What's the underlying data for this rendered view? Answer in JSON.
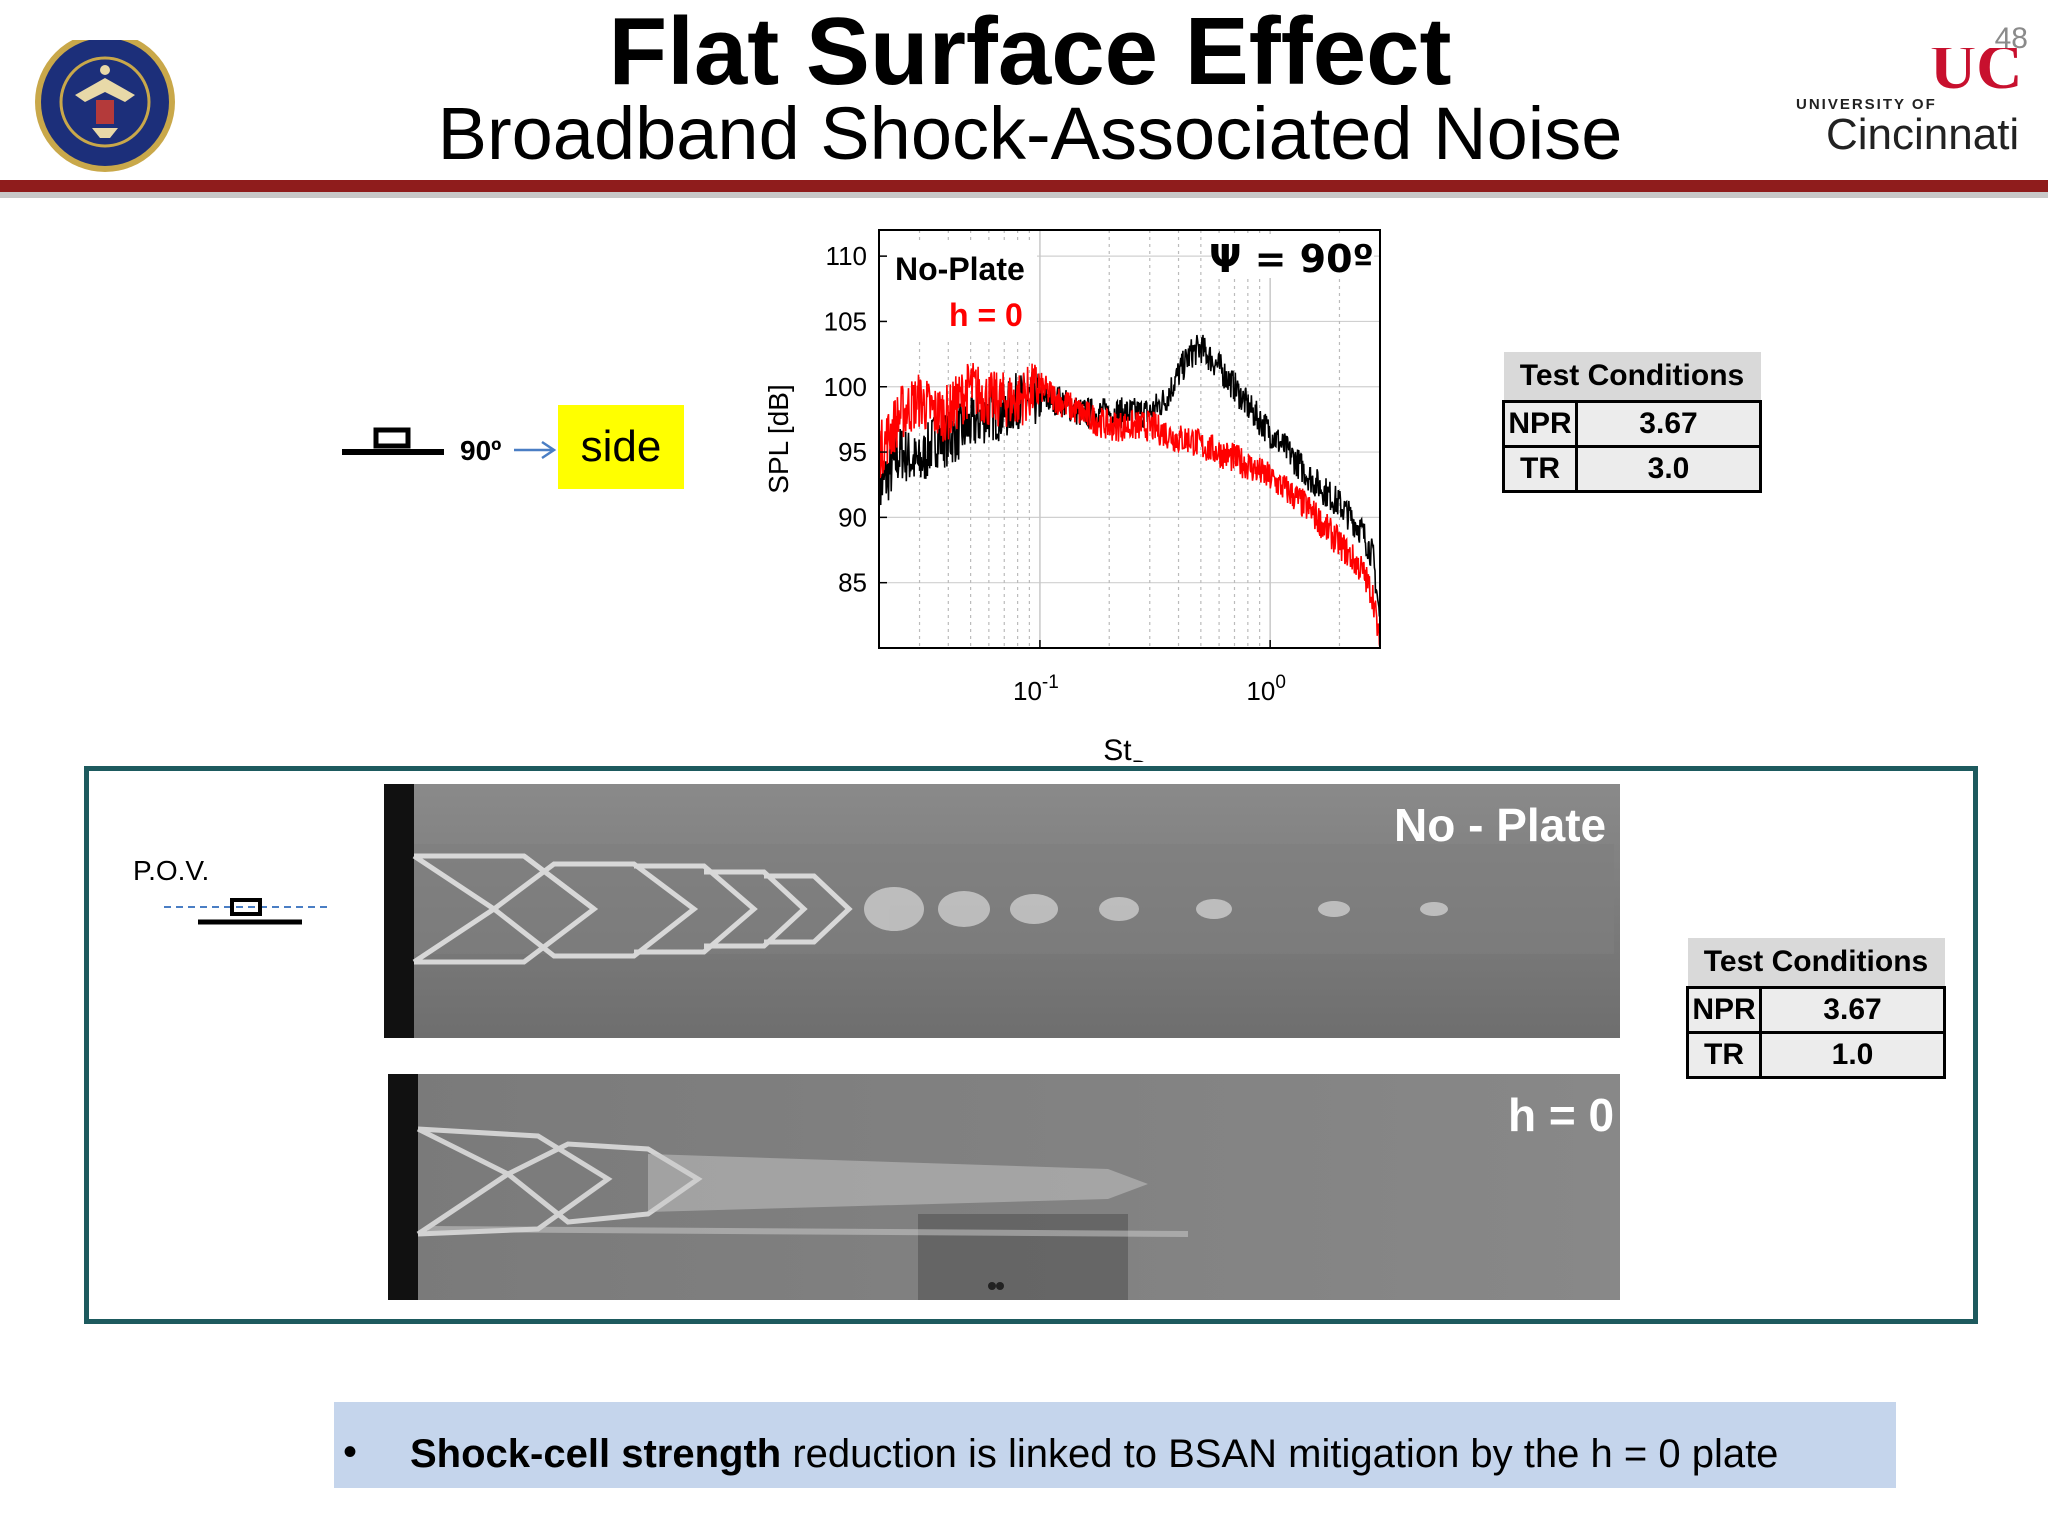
{
  "header": {
    "title": "Flat Surface Effect",
    "subtitle": "Broadband Shock-Associated Noise",
    "page_number": "48",
    "logo_right_small": "UNIVERSITY OF",
    "logo_right_big": "Cincinnati",
    "colors": {
      "rule": "#8f1c1c",
      "seal_blue": "#1c2f7a",
      "uc_red": "#c8102e"
    }
  },
  "orientation": {
    "angle_label": "90º",
    "view_label": "side",
    "highlight_color": "#ffff00"
  },
  "chart_data": {
    "type": "line",
    "title": "",
    "annotations": [
      "Ψ = 90º"
    ],
    "xlabel": "St",
    "xlabel_sub": "De",
    "ylabel": "SPL [dB]",
    "xscale": "log",
    "xlim": [
      0.02,
      3.0
    ],
    "ylim": [
      80,
      112
    ],
    "yticks": [
      85,
      90,
      95,
      100,
      105,
      110
    ],
    "xticks": [
      {
        "base": "10",
        "exp": "-1",
        "value": 0.1
      },
      {
        "base": "10",
        "exp": "0",
        "value": 1.0
      }
    ],
    "grid": true,
    "legend": [
      {
        "label": "No-Plate",
        "color": "#000000"
      },
      {
        "label": "h = 0",
        "color": "#ff0000"
      }
    ],
    "series": [
      {
        "name": "No-Plate",
        "color": "#000000",
        "x": [
          0.02,
          0.025,
          0.03,
          0.035,
          0.04,
          0.05,
          0.06,
          0.07,
          0.08,
          0.1,
          0.12,
          0.15,
          0.2,
          0.25,
          0.3,
          0.35,
          0.4,
          0.45,
          0.5,
          0.6,
          0.7,
          0.8,
          1.0,
          1.2,
          1.5,
          2.0,
          2.5,
          2.8,
          3.0
        ],
        "y": [
          92,
          95,
          94,
          96,
          96,
          97,
          98,
          98,
          99,
          99,
          99,
          98,
          98,
          98,
          98,
          99,
          101,
          102.5,
          103,
          101.5,
          100,
          98.5,
          96.5,
          95,
          93,
          91,
          89,
          87,
          82
        ]
      },
      {
        "name": "h = 0",
        "color": "#ff0000",
        "x": [
          0.02,
          0.025,
          0.03,
          0.035,
          0.04,
          0.05,
          0.06,
          0.07,
          0.08,
          0.1,
          0.12,
          0.15,
          0.2,
          0.25,
          0.3,
          0.35,
          0.4,
          0.45,
          0.5,
          0.6,
          0.7,
          0.8,
          1.0,
          1.2,
          1.5,
          2.0,
          2.5,
          2.8,
          3.0
        ],
        "y": [
          95,
          98,
          99,
          98,
          98,
          100,
          99,
          99,
          99,
          100,
          99,
          98,
          97,
          97,
          97,
          96.5,
          96,
          96,
          95.5,
          95,
          94.5,
          94,
          93,
          92,
          90.5,
          88,
          86,
          84,
          80
        ]
      }
    ]
  },
  "test_conditions_top": {
    "header": "Test Conditions",
    "rows": [
      {
        "label": "NPR",
        "value": "3.67"
      },
      {
        "label": "TR",
        "value": "3.0"
      }
    ]
  },
  "schlieren": {
    "pov_label": "P.O.V.",
    "image1_caption": "No - Plate",
    "image2_caption": "h = 0",
    "frame_color": "#1d5a5e"
  },
  "test_conditions_bottom": {
    "header": "Test Conditions",
    "rows": [
      {
        "label": "NPR",
        "value": "3.67"
      },
      {
        "label": "TR",
        "value": "1.0"
      }
    ]
  },
  "bullet": {
    "marker": "•",
    "bold": "Shock-cell strength",
    "rest": " reduction is linked to BSAN mitigation by the h = 0 plate",
    "background": "#c5d5ec"
  }
}
